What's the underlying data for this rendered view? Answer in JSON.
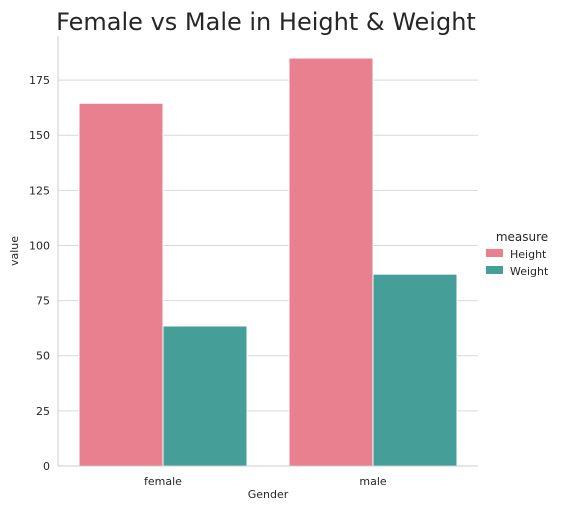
{
  "chart_data": {
    "type": "bar",
    "title": "Female vs Male in Height & Weight",
    "xlabel": "Gender",
    "ylabel": "value",
    "categories": [
      "female",
      "male"
    ],
    "series": [
      {
        "name": "Height",
        "values": [
          164.5,
          185
        ],
        "color": "#e8808f"
      },
      {
        "name": "Weight",
        "values": [
          63.5,
          87
        ],
        "color": "#469e98"
      }
    ],
    "ylim": [
      0,
      195
    ],
    "yticks": [
      0,
      25,
      50,
      75,
      100,
      125,
      150,
      175
    ],
    "grid": "horizontal",
    "legend_title": "measure",
    "legend_position": "right"
  }
}
